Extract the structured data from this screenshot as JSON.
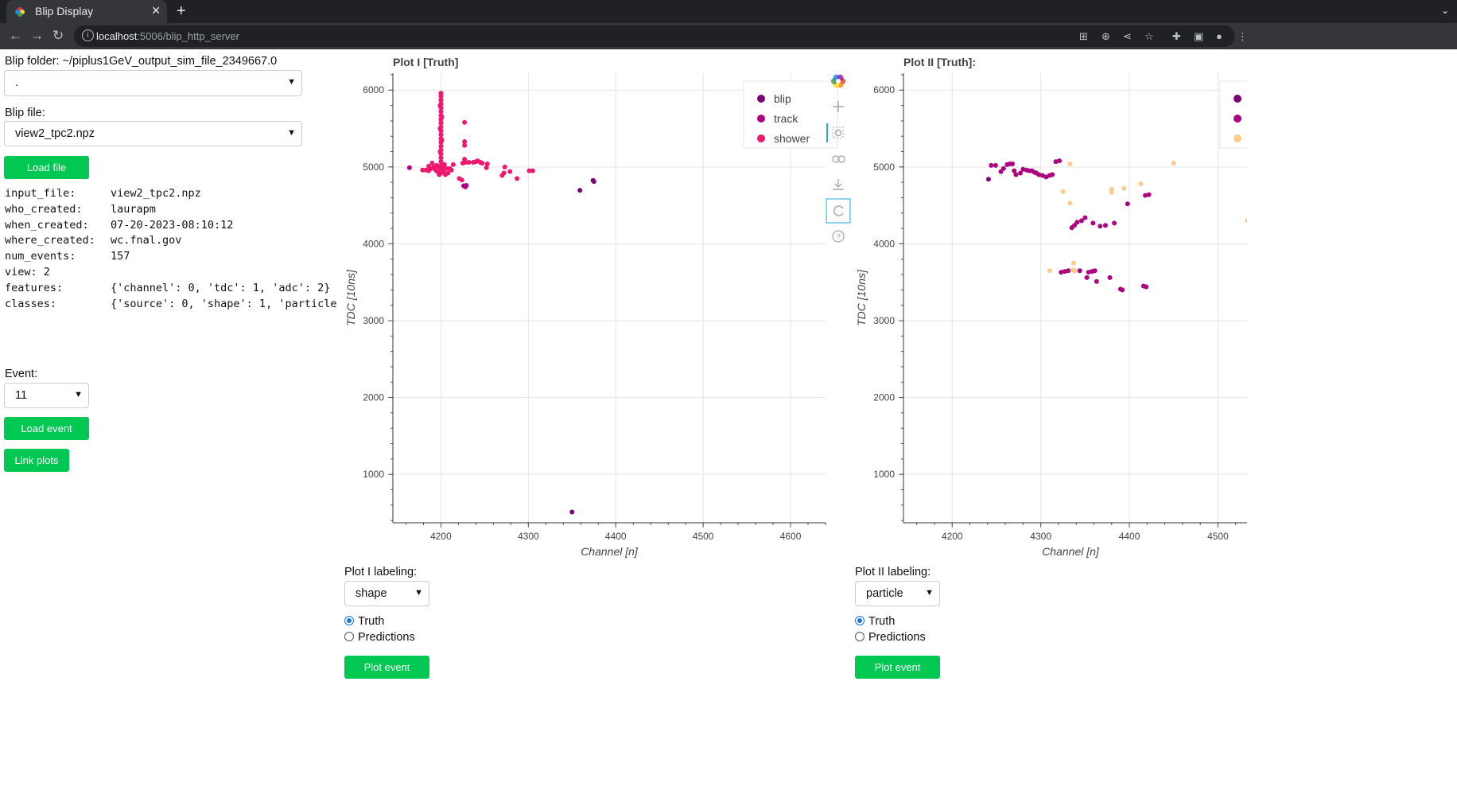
{
  "browser": {
    "tab_title": "Blip Display",
    "tab_close": "✕",
    "new_tab": "+",
    "url_host": "localhost",
    "url_path": ":5006/blip_http_server"
  },
  "left": {
    "folder_label": "Blip folder: ~/piplus1GeV_output_sim_file_2349667.0",
    "folder_value": ".",
    "file_label": "Blip file:",
    "file_value": "view2_tpc2.npz",
    "load_file_button": "Load file",
    "metadata": [
      {
        "key": "input_file:",
        "value": "view2_tpc2.npz"
      },
      {
        "key": "who_created:",
        "value": "laurapm"
      },
      {
        "key": "when_created:",
        "value": "07-20-2023-08:10:12"
      },
      {
        "key": "where_created:",
        "value": "wc.fnal.gov"
      },
      {
        "key": "num_events:",
        "value": "157"
      },
      {
        "key": "view:   2",
        "value": ""
      },
      {
        "key": "features:",
        "value": "{'channel': 0, 'tdc': 1, 'adc': 2}"
      },
      {
        "key": "classes:",
        "value": "{'source': 0, 'shape': 1, 'particle"
      }
    ],
    "event_label": "Event:",
    "event_value": "11",
    "load_event_button": "Load event",
    "link_plots_button": "Link plots"
  },
  "plot1": {
    "title": "Plot I [Truth]",
    "labeling_label": "Plot I labeling:",
    "labeling_value": "shape",
    "radio_truth": "Truth",
    "radio_predictions": "Predictions",
    "plot_button": "Plot event"
  },
  "plot2": {
    "title": "Plot II [Truth]:",
    "labeling_label": "Plot II labeling:",
    "labeling_value": "particle",
    "radio_truth": "Truth",
    "radio_predictions": "Predictions",
    "plot_button": "Plot event"
  },
  "toolbar_icons": [
    "bokeh-logo-icon",
    "pan-icon",
    "box-zoom-icon",
    "wheel-zoom-icon",
    "save-icon",
    "reset-icon",
    "help-icon"
  ],
  "colors": {
    "blip": "#7a0177",
    "track": "#ae017e",
    "shower": "#f0176f",
    "particle_other": "#fdcc8a",
    "button": "#00c853"
  },
  "chart_data": [
    {
      "type": "scatter",
      "title": "Plot I [Truth]",
      "xlabel": "Channel [n]",
      "ylabel": "TDC [10ns]",
      "xlim": [
        4145,
        4640
      ],
      "ylim": [
        370,
        6220
      ],
      "xticks": [
        4200,
        4300,
        4400,
        4500,
        4600
      ],
      "yticks": [
        1000,
        2000,
        3000,
        4000,
        5000,
        6000
      ],
      "grid": true,
      "legend": "top-right",
      "series": [
        {
          "name": "blip",
          "color": "#7a0177",
          "points": [
            [
              4350,
              510
            ],
            [
              4359,
              4695
            ],
            [
              4375,
              4810
            ],
            [
              4374,
              4825
            ]
          ]
        },
        {
          "name": "track",
          "color": "#ae017e",
          "points": [
            [
              4164,
              4990
            ],
            [
              4228,
              4740
            ],
            [
              4229,
              4760
            ],
            [
              4226,
              4755
            ]
          ]
        },
        {
          "name": "shower",
          "color": "#f0176f",
          "points": [
            [
              4200,
              5960
            ],
            [
              4200,
              5920
            ],
            [
              4200,
              5870
            ],
            [
              4200,
              5820
            ],
            [
              4200,
              5770
            ],
            [
              4200,
              5720
            ],
            [
              4200,
              5670
            ],
            [
              4200,
              5620
            ],
            [
              4200,
              5570
            ],
            [
              4200,
              5520
            ],
            [
              4200,
              5470
            ],
            [
              4200,
              5420
            ],
            [
              4200,
              5370
            ],
            [
              4200,
              5320
            ],
            [
              4200,
              5270
            ],
            [
              4200,
              5220
            ],
            [
              4200,
              5170
            ],
            [
              4200,
              5120
            ],
            [
              4200,
              5070
            ],
            [
              4200,
              5020
            ],
            [
              4200,
              4970
            ],
            [
              4200,
              4920
            ],
            [
              4199,
              5800
            ],
            [
              4199,
              5500
            ],
            [
              4199,
              5200
            ],
            [
              4201,
              5650
            ],
            [
              4201,
              5350
            ],
            [
              4179,
              4960
            ],
            [
              4183,
              4960
            ],
            [
              4186,
              4950
            ],
            [
              4186,
              5010
            ],
            [
              4189,
              4980
            ],
            [
              4190,
              5050
            ],
            [
              4192,
              5000
            ],
            [
              4194,
              4960
            ],
            [
              4195,
              5020
            ],
            [
              4196,
              4940
            ],
            [
              4198,
              5000
            ],
            [
              4198,
              4900
            ],
            [
              4202,
              5000
            ],
            [
              4203,
              4950
            ],
            [
              4204,
              5030
            ],
            [
              4205,
              4900
            ],
            [
              4206,
              4980
            ],
            [
              4208,
              4920
            ],
            [
              4210,
              4980
            ],
            [
              4212,
              4960
            ],
            [
              4214,
              5030
            ],
            [
              4227,
              5580
            ],
            [
              4227,
              5330
            ],
            [
              4227,
              5280
            ],
            [
              4227,
              5100
            ],
            [
              4221,
              4850
            ],
            [
              4224,
              4830
            ],
            [
              4225,
              5050
            ],
            [
              4228,
              5060
            ],
            [
              4232,
              5060
            ],
            [
              4237,
              5060
            ],
            [
              4240,
              5070
            ],
            [
              4242,
              5080
            ],
            [
              4245,
              5060
            ],
            [
              4247,
              5050
            ],
            [
              4252,
              4990
            ],
            [
              4253,
              5040
            ],
            [
              4270,
              4890
            ],
            [
              4272,
              4920
            ],
            [
              4273,
              5000
            ],
            [
              4279,
              4940
            ],
            [
              4287,
              4850
            ],
            [
              4305,
              4950
            ],
            [
              4301,
              4950
            ]
          ]
        }
      ]
    },
    {
      "type": "scatter",
      "title": "Plot II [Truth]:",
      "xlabel": "Channel [n]",
      "ylabel": "TDC [10ns]",
      "xlim": [
        4145,
        4540
      ],
      "ylim": [
        370,
        6220
      ],
      "xticks": [
        4200,
        4300,
        4400,
        4500
      ],
      "yticks": [
        1000,
        2000,
        3000,
        4000,
        5000,
        6000
      ],
      "grid": true,
      "legend": "top-right",
      "series": [
        {
          "name": "",
          "color": "#7a0177",
          "points": [
            [
              4241,
              4840
            ]
          ]
        },
        {
          "name": "",
          "color": "#ae017e",
          "points": [
            [
              4244,
              5020
            ],
            [
              4249,
              5020
            ],
            [
              4255,
              4940
            ],
            [
              4258,
              4980
            ],
            [
              4262,
              5030
            ],
            [
              4265,
              5040
            ],
            [
              4268,
              5040
            ],
            [
              4270,
              4950
            ],
            [
              4272,
              4900
            ],
            [
              4277,
              4920
            ],
            [
              4280,
              4970
            ],
            [
              4284,
              4960
            ],
            [
              4287,
              4950
            ],
            [
              4290,
              4950
            ],
            [
              4293,
              4930
            ],
            [
              4295,
              4920
            ],
            [
              4298,
              4900
            ],
            [
              4302,
              4890
            ],
            [
              4306,
              4870
            ],
            [
              4310,
              4890
            ],
            [
              4313,
              4900
            ],
            [
              4317,
              5070
            ],
            [
              4321,
              5080
            ],
            [
              4335,
              4210
            ],
            [
              4338,
              4240
            ],
            [
              4341,
              4280
            ],
            [
              4346,
              4300
            ],
            [
              4350,
              4340
            ],
            [
              4359,
              4270
            ],
            [
              4367,
              4230
            ],
            [
              4373,
              4240
            ],
            [
              4383,
              4270
            ],
            [
              4398,
              4520
            ],
            [
              4418,
              4630
            ],
            [
              4422,
              4640
            ],
            [
              4323,
              3630
            ],
            [
              4327,
              3640
            ],
            [
              4331,
              3650
            ],
            [
              4338,
              3650
            ],
            [
              4344,
              3650
            ],
            [
              4352,
              3560
            ],
            [
              4354,
              3630
            ],
            [
              4358,
              3640
            ],
            [
              4361,
              3650
            ],
            [
              4363,
              3510
            ],
            [
              4378,
              3560
            ],
            [
              4390,
              3410
            ],
            [
              4392,
              3400
            ],
            [
              4416,
              3450
            ],
            [
              4419,
              3440
            ]
          ]
        },
        {
          "name": "",
          "color": "#fdcc8a",
          "points": [
            [
              4333,
              5040
            ],
            [
              4380,
              4710
            ],
            [
              4380,
              4670
            ],
            [
              4394,
              4720
            ],
            [
              4413,
              4780
            ],
            [
              4450,
              5050
            ],
            [
              4337,
              3750
            ],
            [
              4338,
              3650
            ],
            [
              4333,
              4530
            ],
            [
              4325,
              4680
            ],
            [
              4310,
              3650
            ],
            [
              4336,
              3660
            ],
            [
              4533,
              4300
            ]
          ]
        }
      ]
    }
  ]
}
